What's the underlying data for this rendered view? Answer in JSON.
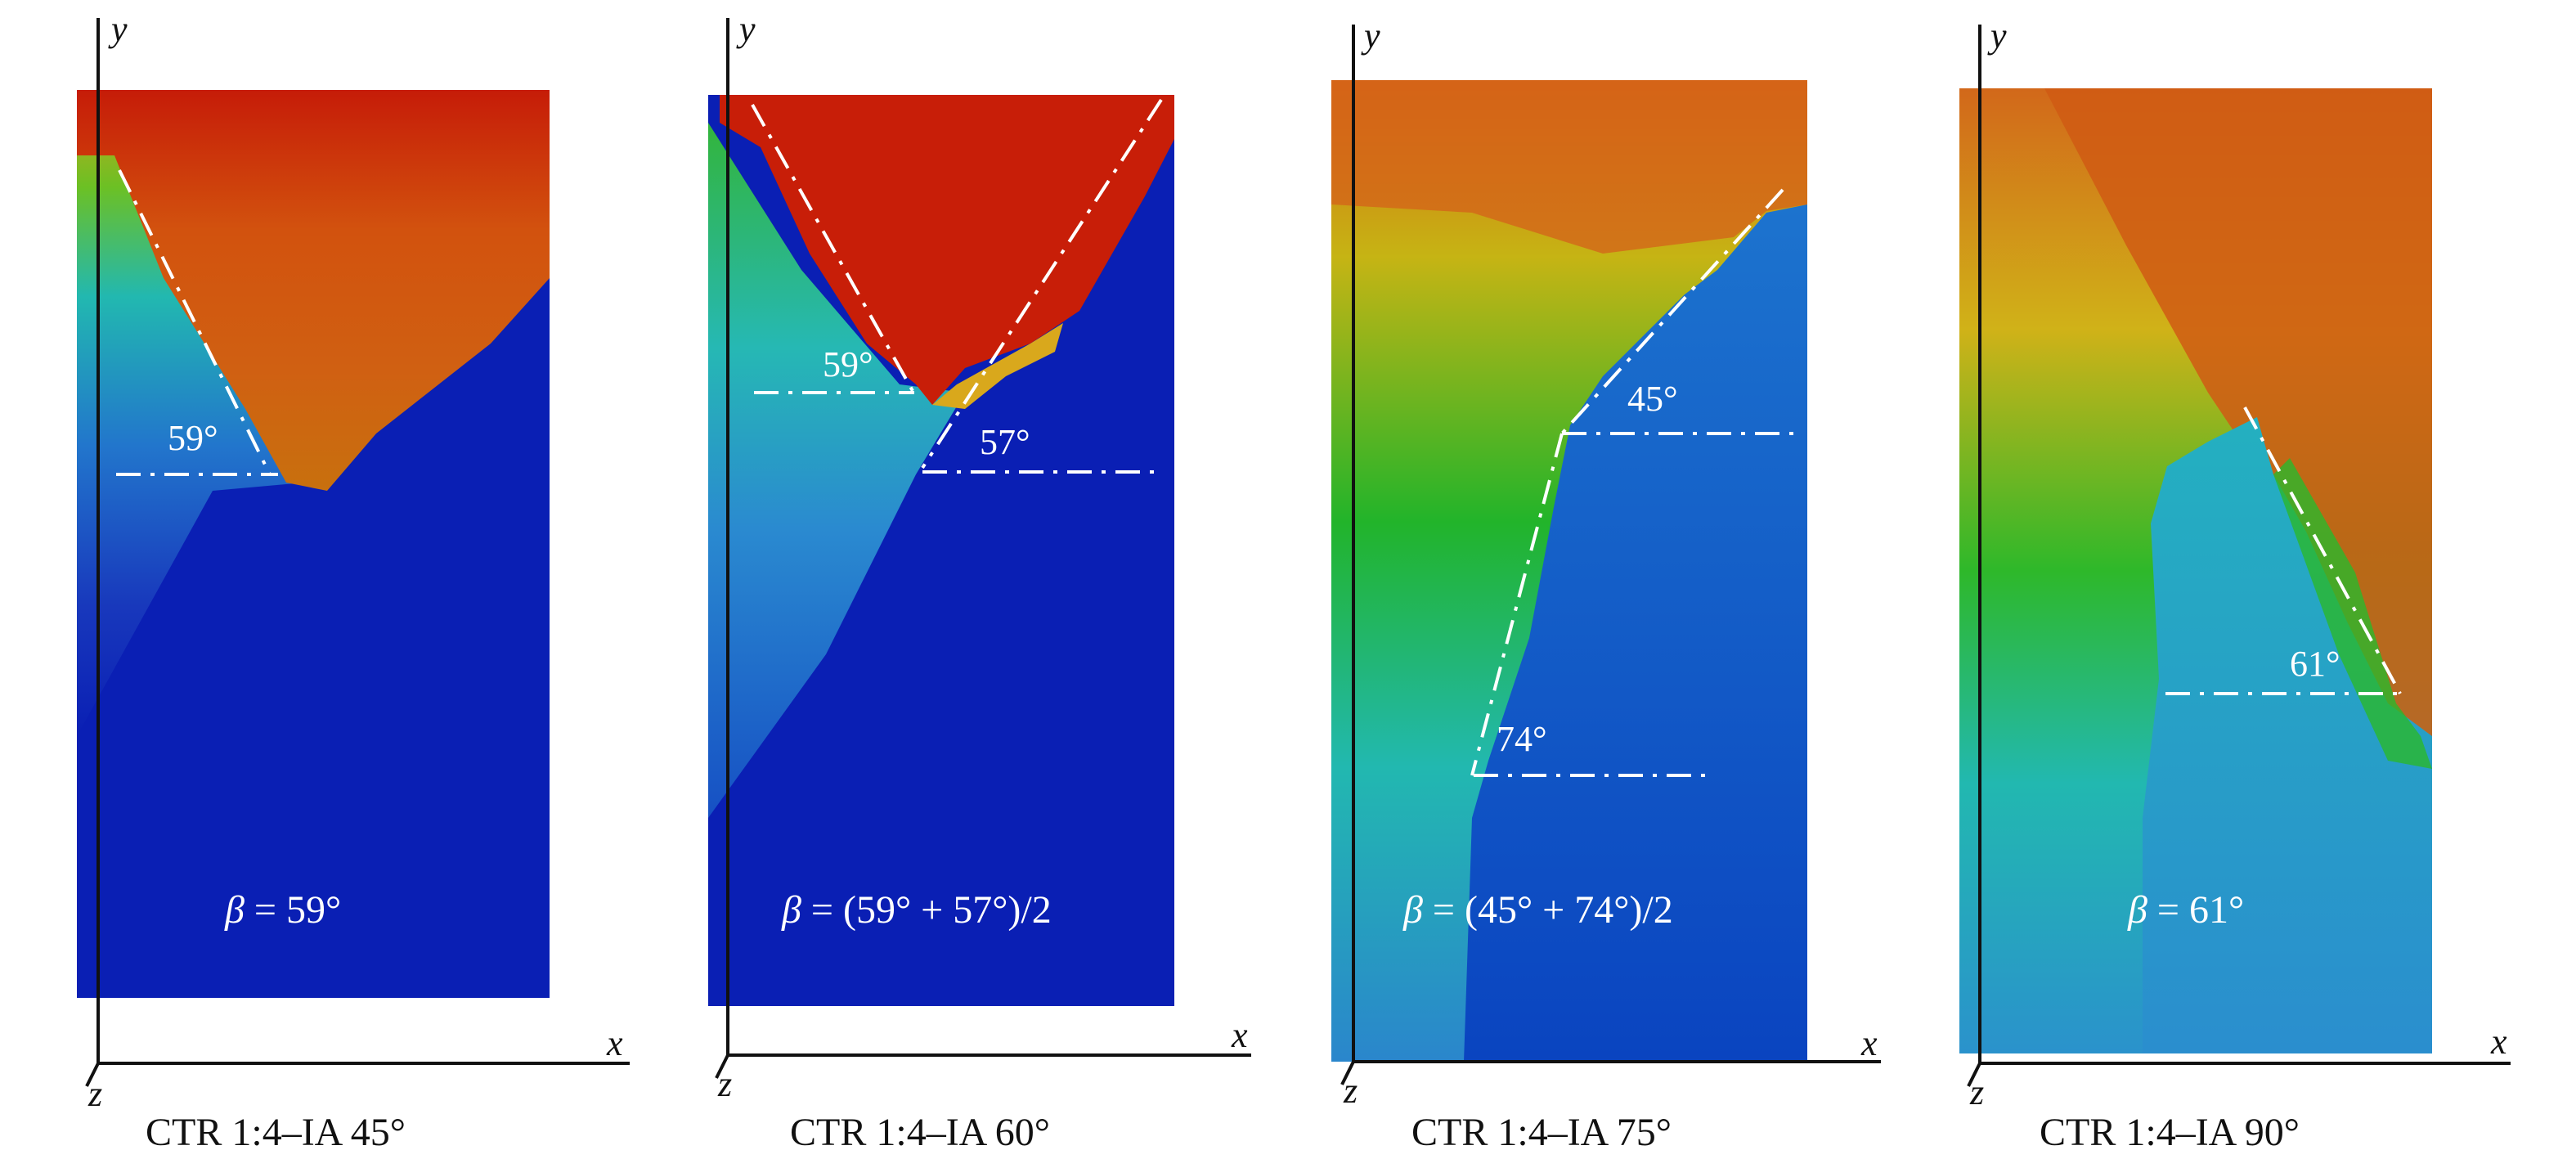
{
  "axes": {
    "x": "x",
    "y": "y",
    "z": "z"
  },
  "panels": [
    {
      "caption": "CTR 1:4–IA 45°",
      "angles": [
        "59°"
      ],
      "beta_symbol": "β",
      "beta_expr": " = 59°"
    },
    {
      "caption": "CTR 1:4–IA 60°",
      "angles": [
        "59°",
        "57°"
      ],
      "beta_symbol": "β",
      "beta_expr": " = (59° + 57°)/2"
    },
    {
      "caption": "CTR 1:4–IA 75°",
      "angles": [
        "45°",
        "74°"
      ],
      "beta_symbol": "β",
      "beta_expr": " = (45° + 74°)/2"
    },
    {
      "caption": "CTR 1:4–IA 90°",
      "angles": [
        "61°"
      ],
      "beta_symbol": "β",
      "beta_expr": " = 61°"
    }
  ],
  "colors": {
    "red": "#c41c08",
    "orange": "#d35a10",
    "yellow": "#c4b214",
    "green": "#26b22a",
    "cyan": "#24b8b0",
    "lightblue": "#2a8ad0",
    "blue": "#0a1fb4"
  }
}
